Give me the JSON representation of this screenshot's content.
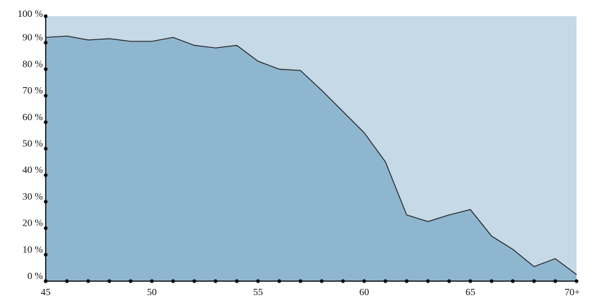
{
  "chart_data": {
    "type": "area",
    "x_labels": [
      "45",
      "50",
      "55",
      "60",
      "65",
      "70+"
    ],
    "x": [
      45,
      46,
      47,
      48,
      49,
      50,
      51,
      52,
      53,
      54,
      55,
      56,
      57,
      58,
      59,
      60,
      61,
      62,
      63,
      64,
      65,
      66,
      67,
      68,
      69,
      70
    ],
    "series": [
      {
        "values": [
          92,
          92.5,
          91,
          91.5,
          90.5,
          90.5,
          92,
          89,
          88,
          89,
          83,
          80,
          79.5,
          72,
          64,
          56,
          45,
          25,
          22.5,
          25,
          27,
          17,
          12,
          5.5,
          8.5,
          2.5
        ]
      }
    ],
    "y_ticks": [
      "0 %",
      "10 %",
      "20 %",
      "30 %",
      "40 %",
      "50 %",
      "60 %",
      "70 %",
      "80 %",
      "90 %",
      "100 %"
    ],
    "xlim": [
      45,
      70
    ],
    "ylim": [
      0,
      100
    ],
    "colors": {
      "area": "#8fb6cf",
      "remainder": "#c5d9e6",
      "line": "#1a1a1a",
      "axis": "#000000"
    },
    "grid": false,
    "legend": "none"
  }
}
